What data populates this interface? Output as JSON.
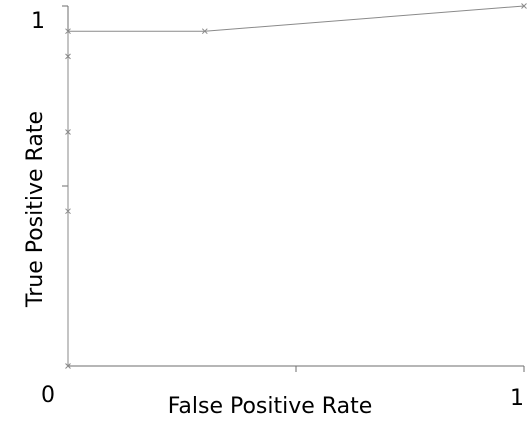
{
  "chart_data": {
    "type": "line",
    "title": "",
    "xlabel": "False Positive Rate",
    "ylabel": "True Positive Rate",
    "xlim": [
      0,
      1
    ],
    "ylim": [
      0,
      1
    ],
    "grid": false,
    "tick_labels": {
      "x_min": "0",
      "x_max": "1",
      "y_max": "1"
    },
    "series": [
      {
        "color": "#8a8a8a",
        "marker": "x",
        "points": [
          {
            "x": 0,
            "y": 0
          },
          {
            "x": 0,
            "y": 0.43
          },
          {
            "x": 0,
            "y": 0.65
          },
          {
            "x": 0,
            "y": 0.86
          },
          {
            "x": 0,
            "y": 0.93
          },
          {
            "x": 0.3,
            "y": 0.93
          },
          {
            "x": 1,
            "y": 1
          }
        ]
      }
    ]
  }
}
